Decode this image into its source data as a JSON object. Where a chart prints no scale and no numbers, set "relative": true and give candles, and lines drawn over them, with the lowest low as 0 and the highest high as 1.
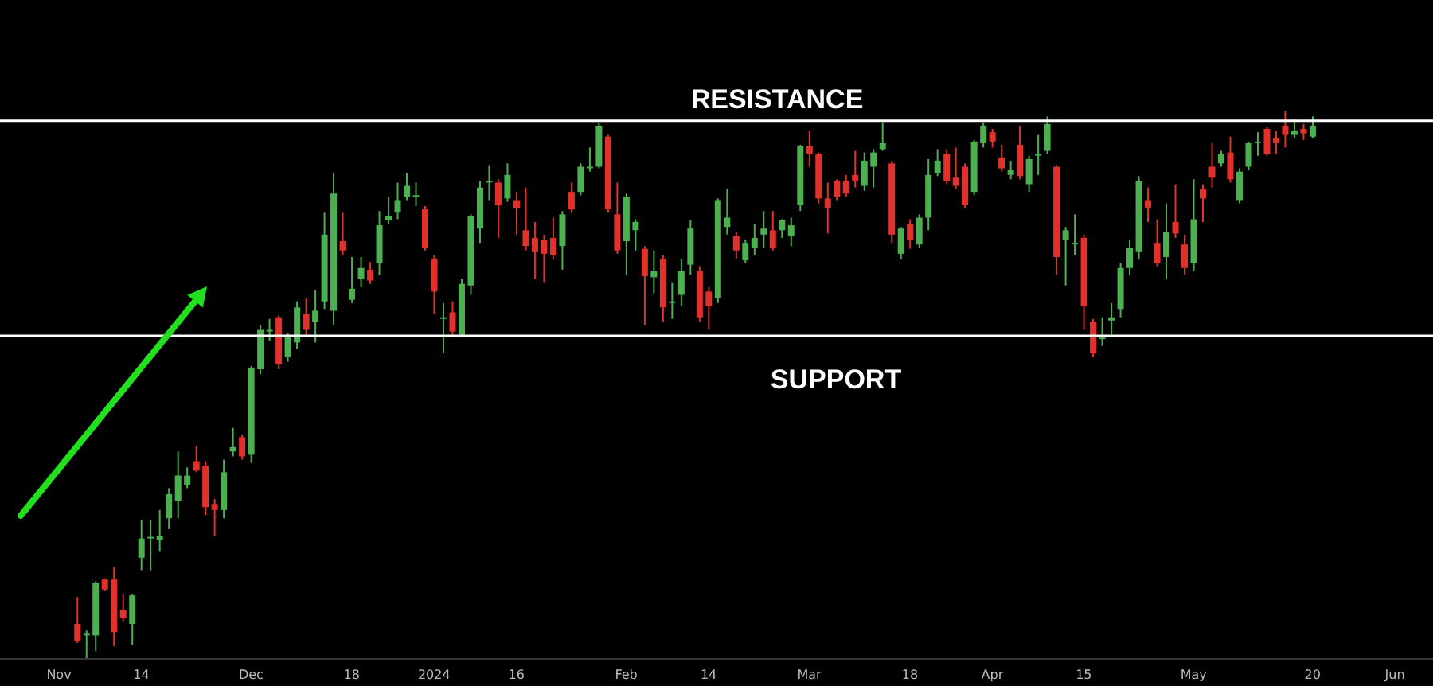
{
  "chart_data": {
    "type": "candlestick",
    "relative": true,
    "categories": [
      "Nov",
      null,
      null,
      null,
      null,
      null,
      null,
      null,
      null,
      "14",
      null,
      null,
      null,
      null,
      null,
      null,
      null,
      null,
      null,
      null,
      null,
      "Dec",
      null,
      null,
      null,
      null,
      null,
      null,
      null,
      null,
      null,
      null,
      "18",
      null,
      null,
      null,
      null,
      null,
      null,
      null,
      null,
      "2024",
      null,
      null,
      null,
      null,
      null,
      null,
      null,
      null,
      "16",
      null,
      null,
      null,
      null,
      null,
      null,
      null,
      null,
      null,
      null,
      null,
      "Feb",
      null,
      null,
      null,
      null,
      null,
      null,
      null,
      null,
      "14",
      null,
      null,
      null,
      null,
      null,
      null,
      null,
      null,
      null,
      null,
      "Mar",
      null,
      null,
      null,
      null,
      null,
      null,
      null,
      null,
      null,
      null,
      "18",
      null,
      null,
      null,
      null,
      null,
      null,
      null,
      null,
      "Apr",
      null,
      null,
      null,
      null,
      null,
      null,
      null,
      null,
      null,
      "15",
      null,
      null,
      null,
      null,
      null,
      null,
      null,
      null,
      null,
      null,
      null,
      "May",
      null,
      null,
      null,
      null,
      null,
      null,
      null,
      null,
      null,
      null,
      null,
      null,
      "20",
      null,
      null,
      null,
      null,
      null,
      null,
      null,
      null,
      "Jun"
    ],
    "ohlc": [
      null,
      null,
      [
        0.064,
        0.113,
        0.029,
        0.032
      ],
      [
        0.046,
        0.052,
        0,
        0.046
      ],
      [
        0.043,
        0.142,
        0.014,
        0.139
      ],
      [
        0.145,
        0.147,
        0.124,
        0.127
      ],
      [
        0.145,
        0.168,
        0.023,
        0.049
      ],
      [
        0.09,
        0.118,
        0.069,
        0.075
      ],
      [
        0.064,
        0.118,
        0.026,
        0.116
      ],
      [
        0.185,
        0.254,
        0.162,
        0.22
      ],
      [
        0.223,
        0.254,
        0.162,
        0.223
      ],
      [
        0.217,
        0.272,
        0.197,
        0.225
      ],
      [
        0.257,
        0.312,
        0.237,
        0.301
      ],
      [
        0.289,
        0.379,
        0.257,
        0.335
      ],
      [
        0.318,
        0.35,
        0.312,
        0.335
      ],
      [
        0.361,
        0.39,
        0.341,
        0.344
      ],
      [
        0.353,
        0.361,
        0.263,
        0.277
      ],
      [
        0.283,
        0.292,
        0.225,
        0.272
      ],
      [
        0.272,
        0.364,
        0.257,
        0.341
      ],
      [
        0.379,
        0.422,
        0.37,
        0.387
      ],
      [
        0.405,
        0.41,
        0.364,
        0.37
      ],
      [
        0.373,
        0.535,
        0.358,
        0.532
      ],
      [
        0.529,
        0.61,
        0.52,
        0.601
      ],
      [
        0.601,
        0.621,
        0.581,
        0.601
      ],
      [
        0.624,
        0.627,
        0.529,
        0.538
      ],
      [
        0.552,
        0.595,
        0.543,
        0.59
      ],
      [
        0.578,
        0.653,
        0.566,
        0.642
      ],
      [
        0.63,
        0.659,
        0.592,
        0.601
      ],
      [
        0.616,
        0.673,
        0.578,
        0.636
      ],
      [
        0.653,
        0.815,
        0.639,
        0.775
      ],
      [
        0.636,
        0.887,
        0.61,
        0.85
      ],
      [
        0.763,
        0.815,
        0.737,
        0.746
      ],
      [
        0.656,
        0.734,
        0.65,
        0.676
      ],
      [
        0.694,
        0.734,
        0.679,
        0.714
      ],
      [
        0.711,
        0.725,
        0.685,
        0.691
      ],
      [
        0.723,
        0.818,
        0.702,
        0.792
      ],
      [
        0.801,
        0.844,
        0.795,
        0.809
      ],
      [
        0.815,
        0.87,
        0.803,
        0.838
      ],
      [
        0.844,
        0.887,
        0.838,
        0.864
      ],
      [
        0.847,
        0.87,
        0.827,
        0.847
      ],
      [
        0.821,
        0.827,
        0.746,
        0.751
      ],
      [
        0.731,
        0.737,
        0.63,
        0.671
      ],
      [
        0.624,
        0.65,
        0.558,
        0.624
      ],
      [
        0.633,
        0.653,
        0.592,
        0.598
      ],
      [
        0.592,
        0.694,
        0.587,
        0.685
      ],
      [
        0.682,
        0.812,
        0.665,
        0.809
      ],
      [
        0.786,
        0.873,
        0.76,
        0.861
      ],
      [
        0.873,
        0.902,
        0.838,
        0.873
      ],
      [
        0.87,
        0.876,
        0.769,
        0.829
      ],
      [
        0.841,
        0.905,
        0.835,
        0.884
      ],
      [
        0.838,
        0.853,
        0.775,
        0.824
      ],
      [
        0.783,
        0.861,
        0.746,
        0.754
      ],
      [
        0.769,
        0.798,
        0.694,
        0.743
      ],
      [
        0.766,
        0.775,
        0.688,
        0.74
      ],
      [
        0.769,
        0.806,
        0.731,
        0.737
      ],
      [
        0.754,
        0.818,
        0.711,
        0.812
      ],
      [
        0.853,
        0.87,
        0.815,
        0.821
      ],
      [
        0.853,
        0.905,
        0.847,
        0.899
      ],
      [
        0.899,
        0.934,
        0.89,
        0.899
      ],
      [
        0.899,
        0.98,
        0.896,
        0.974
      ],
      [
        0.954,
        0.957,
        0.815,
        0.821
      ],
      [
        0.812,
        0.87,
        0.74,
        0.746
      ],
      [
        0.763,
        0.85,
        0.702,
        0.844
      ],
      [
        0.783,
        0.803,
        0.746,
        0.798
      ],
      [
        0.749,
        0.754,
        0.61,
        0.699
      ],
      [
        0.697,
        0.746,
        0.668,
        0.708
      ],
      [
        0.731,
        0.737,
        0.616,
        0.642
      ],
      [
        0.653,
        0.688,
        0.621,
        0.653
      ],
      [
        0.665,
        0.731,
        0.645,
        0.708
      ],
      [
        0.72,
        0.801,
        0.702,
        0.786
      ],
      [
        0.708,
        0.717,
        0.616,
        0.624
      ],
      [
        0.671,
        0.679,
        0.601,
        0.645
      ],
      [
        0.659,
        0.841,
        0.65,
        0.838
      ],
      [
        0.789,
        0.858,
        0.775,
        0.806
      ],
      [
        0.772,
        0.78,
        0.731,
        0.746
      ],
      [
        0.728,
        0.766,
        0.723,
        0.76
      ],
      [
        0.751,
        0.795,
        0.737,
        0.769
      ],
      [
        0.775,
        0.818,
        0.751,
        0.786
      ],
      [
        0.783,
        0.818,
        0.746,
        0.751
      ],
      [
        0.783,
        0.803,
        0.769,
        0.801
      ],
      [
        0.772,
        0.806,
        0.754,
        0.792
      ],
      [
        0.829,
        0.939,
        0.818,
        0.936
      ],
      [
        0.936,
        0.965,
        0.899,
        0.922
      ],
      [
        0.922,
        0.925,
        0.832,
        0.841
      ],
      [
        0.841,
        0.87,
        0.777,
        0.824
      ],
      [
        0.873,
        0.876,
        0.838,
        0.844
      ],
      [
        0.873,
        0.884,
        0.844,
        0.85
      ],
      [
        0.884,
        0.928,
        0.861,
        0.873
      ],
      [
        0.864,
        0.925,
        0.855,
        0.91
      ],
      [
        0.899,
        0.931,
        0.861,
        0.925
      ],
      [
        0.931,
        0.98,
        0.928,
        0.942
      ],
      [
        0.905,
        0.91,
        0.76,
        0.775
      ],
      [
        0.74,
        0.789,
        0.731,
        0.786
      ],
      [
        0.795,
        0.803,
        0.749,
        0.766
      ],
      [
        0.757,
        0.812,
        0.751,
        0.806
      ],
      [
        0.806,
        0.913,
        0.783,
        0.884
      ],
      [
        0.887,
        0.931,
        0.882,
        0.91
      ],
      [
        0.922,
        0.931,
        0.867,
        0.873
      ],
      [
        0.879,
        0.934,
        0.858,
        0.864
      ],
      [
        0.899,
        0.905,
        0.824,
        0.829
      ],
      [
        0.853,
        0.948,
        0.847,
        0.945
      ],
      [
        0.942,
        0.98,
        0.934,
        0.974
      ],
      [
        0.962,
        0.968,
        0.934,
        0.945
      ],
      [
        0.916,
        0.939,
        0.89,
        0.896
      ],
      [
        0.884,
        0.91,
        0.876,
        0.893
      ],
      [
        0.939,
        0.974,
        0.876,
        0.882
      ],
      [
        0.867,
        0.919,
        0.853,
        0.913
      ],
      [
        0.922,
        0.957,
        0.884,
        0.922
      ],
      [
        0.928,
        0.991,
        0.922,
        0.977
      ],
      [
        0.899,
        0.902,
        0.702,
        0.734
      ],
      [
        0.766,
        0.789,
        0.682,
        0.783
      ],
      [
        0.76,
        0.812,
        0.737,
        0.76
      ],
      [
        0.769,
        0.775,
        0.601,
        0.645
      ],
      [
        0.616,
        0.621,
        0.552,
        0.558
      ],
      [
        0.587,
        0.624,
        0.572,
        0.587
      ],
      [
        0.618,
        0.65,
        0.592,
        0.624
      ],
      [
        0.639,
        0.723,
        0.624,
        0.714
      ],
      [
        0.714,
        0.766,
        0.702,
        0.751
      ],
      [
        0.743,
        0.882,
        0.731,
        0.873
      ],
      [
        0.838,
        0.861,
        0.798,
        0.824
      ],
      [
        0.76,
        0.803,
        0.717,
        0.723
      ],
      [
        0.734,
        0.832,
        0.694,
        0.78
      ],
      [
        0.798,
        0.867,
        0.769,
        0.777
      ],
      [
        0.757,
        0.775,
        0.702,
        0.714
      ],
      [
        0.723,
        0.876,
        0.708,
        0.803
      ],
      [
        0.858,
        0.867,
        0.798,
        0.841
      ],
      [
        0.899,
        0.942,
        0.861,
        0.879
      ],
      [
        0.905,
        0.928,
        0.899,
        0.922
      ],
      [
        0.925,
        0.954,
        0.87,
        0.876
      ],
      [
        0.838,
        0.896,
        0.832,
        0.89
      ],
      [
        0.899,
        0.945,
        0.893,
        0.942
      ],
      [
        0.945,
        0.962,
        0.919,
        0.945
      ],
      [
        0.968,
        0.971,
        0.919,
        0.922
      ],
      [
        0.951,
        0.965,
        0.922,
        0.942
      ],
      [
        0.974,
        1,
        0.934,
        0.957
      ],
      [
        0.957,
        0.986,
        0.951,
        0.965
      ],
      [
        0.968,
        0.977,
        0.948,
        0.96
      ],
      [
        0.954,
        0.991,
        0.951,
        0.974
      ],
      null,
      null,
      null,
      null,
      null,
      null,
      null,
      null,
      null
    ],
    "ref_lines": [
      {
        "axis": "y",
        "value": 0.983,
        "label": "RESISTANCE",
        "color": "#ffffff"
      },
      {
        "axis": "y",
        "value": 0.59,
        "label": "SUPPORT",
        "color": "#ffffff"
      }
    ]
  }
}
